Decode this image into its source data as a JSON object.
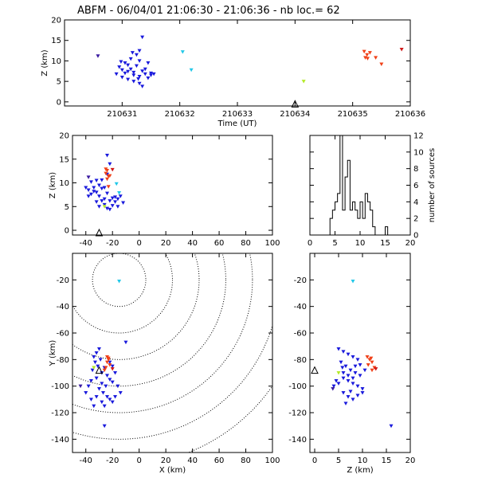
{
  "figure": {
    "title": "ABFM - 06/04/01 21:06:30 - 21:06:36 - nb loc.=      62"
  },
  "colors": {
    "blue": "#1a1adc",
    "navy": "#3a1aa0",
    "cyan": "#22c8e8",
    "lime": "#b4ea28",
    "red": "#f04018",
    "darkred": "#d01818",
    "axis": "#000000"
  },
  "chart_data": [
    {
      "id": "time_z",
      "type": "scatter",
      "xlabel": "Time (UT)",
      "ylabel": "Z (km)",
      "xlim": [
        210630,
        210636
      ],
      "ylim": [
        -1,
        20
      ],
      "xticks": [
        210631,
        210632,
        210633,
        210634,
        210635,
        210636
      ],
      "xticklabels": [
        "210631",
        "210632",
        "210633",
        "210634",
        "210635",
        "210636"
      ],
      "yticks": [
        0,
        5,
        10,
        15,
        20
      ],
      "marker": {
        "x": 210634,
        "y": -0.5
      },
      "series": [
        {
          "color": "blue",
          "points": [
            [
              210630.95,
              8.5
            ],
            [
              210631,
              7.8
            ],
            [
              210631.05,
              7
            ],
            [
              210631.1,
              9
            ],
            [
              210631.15,
              8
            ],
            [
              210631.2,
              6.5
            ],
            [
              210631.25,
              8.8
            ],
            [
              210631.3,
              10
            ],
            [
              210631.35,
              7.5
            ],
            [
              210631.4,
              6.8
            ],
            [
              210631.45,
              9.5
            ],
            [
              210631.5,
              7
            ],
            [
              210630.9,
              6.8
            ],
            [
              210631,
              6
            ],
            [
              210631.1,
              5.5
            ],
            [
              210631.2,
              5
            ],
            [
              210631.3,
              4.5
            ],
            [
              210631.35,
              3.8
            ],
            [
              210631.15,
              10.5
            ],
            [
              210631.25,
              11.5
            ],
            [
              210631.3,
              12.5
            ],
            [
              210631.35,
              15.8
            ],
            [
              210631.05,
              9.5
            ],
            [
              210631.4,
              8
            ],
            [
              210631.5,
              6.5
            ],
            [
              210631.2,
              7.2
            ],
            [
              210631.3,
              6.2
            ],
            [
              210631.1,
              7.4
            ],
            [
              210631.45,
              5.8
            ],
            [
              210631.55,
              6.8
            ],
            [
              210630.98,
              9.8
            ],
            [
              210631.28,
              5.6
            ],
            [
              210631.18,
              12
            ]
          ]
        },
        {
          "color": "navy",
          "points": [
            [
              210630.58,
              11.2
            ]
          ]
        },
        {
          "color": "cyan",
          "points": [
            [
              210632.05,
              12.2
            ],
            [
              210632.2,
              7.8
            ]
          ]
        },
        {
          "color": "lime",
          "points": [
            [
              210634.15,
              5
            ]
          ]
        },
        {
          "color": "red",
          "points": [
            [
              210635.2,
              12.3
            ],
            [
              210635.25,
              11.5
            ],
            [
              210635.22,
              10.8
            ],
            [
              210635.3,
              12
            ],
            [
              210635.4,
              10.8
            ],
            [
              210635.5,
              9.2
            ],
            [
              210635.26,
              10.6
            ]
          ]
        },
        {
          "color": "darkred",
          "points": [
            [
              210635.85,
              12.8
            ]
          ]
        }
      ]
    },
    {
      "id": "x_z",
      "type": "scatter",
      "xlabel": "",
      "ylabel": "Z (km)",
      "xlim": [
        -50,
        100
      ],
      "ylim": [
        -1,
        20
      ],
      "xticks": [
        -40,
        -20,
        0,
        20,
        40,
        60,
        80,
        100
      ],
      "xticklabels": [
        "-40",
        "-20",
        "0",
        "20",
        "40",
        "60",
        "80",
        "100"
      ],
      "yticks": [
        0,
        5,
        10,
        15,
        20
      ],
      "marker": {
        "x": -30,
        "y": -0.5
      },
      "series": [
        {
          "color": "blue",
          "points": [
            [
              -40,
              9
            ],
            [
              -38,
              8.5
            ],
            [
              -36,
              7.6
            ],
            [
              -34,
              9
            ],
            [
              -32,
              8
            ],
            [
              -30,
              7.2
            ],
            [
              -28,
              8.8
            ],
            [
              -26,
              6.6
            ],
            [
              -24,
              7.8
            ],
            [
              -22,
              6.2
            ],
            [
              -20,
              5.2
            ],
            [
              -18,
              7
            ],
            [
              -16,
              6.6
            ],
            [
              -14,
              7.2
            ],
            [
              -12,
              5.8
            ],
            [
              -32,
              6
            ],
            [
              -30,
              5
            ],
            [
              -26,
              5.4
            ],
            [
              -24,
              4.6
            ],
            [
              -22,
              4.4
            ],
            [
              -36,
              10.2
            ],
            [
              -28,
              10.6
            ],
            [
              -24,
              11.8
            ],
            [
              -22,
              14
            ],
            [
              -24,
              15.8
            ],
            [
              -30,
              9.5
            ],
            [
              -34,
              8.2
            ],
            [
              -26,
              9
            ],
            [
              -20,
              6.8
            ],
            [
              -38,
              7.2
            ],
            [
              -32,
              10.5
            ],
            [
              -28,
              6.2
            ],
            [
              -16,
              5
            ],
            [
              -18,
              6
            ]
          ]
        },
        {
          "color": "navy",
          "points": [
            [
              -38,
              11.2
            ]
          ]
        },
        {
          "color": "cyan",
          "points": [
            [
              -15,
              7.9
            ],
            [
              -17,
              9.8
            ]
          ]
        },
        {
          "color": "lime",
          "points": [
            [
              -26,
              5
            ]
          ]
        },
        {
          "color": "red",
          "points": [
            [
              -24,
              12.6
            ],
            [
              -25,
              12
            ],
            [
              -23,
              11.4
            ],
            [
              -24,
              10.8
            ],
            [
              -25,
              12.9
            ],
            [
              -22,
              11.5
            ],
            [
              -23,
              9.2
            ]
          ]
        },
        {
          "color": "darkred",
          "points": [
            [
              -20,
              12.8
            ]
          ]
        }
      ]
    },
    {
      "id": "histogram",
      "type": "bar",
      "xlabel": "",
      "ylabel": "number of sources",
      "xlim": [
        0,
        20
      ],
      "ylim": [
        0,
        12
      ],
      "xticks": [
        0,
        5,
        10,
        15,
        20
      ],
      "xticklabels": [
        "0",
        "5",
        "10",
        "15",
        "20"
      ],
      "yticks": [
        0,
        2,
        4,
        6,
        8,
        10,
        12
      ],
      "bin_width": 0.5,
      "bins_start": 4,
      "counts": [
        2,
        3,
        4,
        5,
        12,
        3,
        7,
        9,
        3,
        4,
        3,
        2,
        4,
        2,
        5,
        4,
        3,
        1,
        0,
        0,
        0,
        0,
        1,
        0
      ]
    },
    {
      "id": "x_y",
      "type": "scatter",
      "xlabel": "X (km)",
      "ylabel": "Y (km)",
      "xlim": [
        -50,
        100
      ],
      "ylim": [
        -150,
        0
      ],
      "xticks": [
        -40,
        -20,
        0,
        20,
        40,
        60,
        80,
        100
      ],
      "xticklabels": [
        "-40",
        "-20",
        "0",
        "20",
        "40",
        "60",
        "80",
        "100"
      ],
      "yticks": [
        -140,
        -120,
        -100,
        -80,
        -60,
        -40,
        -20
      ],
      "range_rings_center": [
        -15,
        -20
      ],
      "range_rings": [
        20,
        40,
        60,
        80,
        100,
        120,
        140
      ],
      "marker": {
        "x": -30,
        "y": -88
      },
      "series": [
        {
          "color": "blue",
          "points": [
            [
              -30,
              -72
            ],
            [
              -32,
              -75
            ],
            [
              -34,
              -78
            ],
            [
              -29,
              -80
            ],
            [
              -33,
              -82
            ],
            [
              -31,
              -85
            ],
            [
              -35,
              -88
            ],
            [
              -28,
              -90
            ],
            [
              -26,
              -86
            ],
            [
              -24,
              -92
            ],
            [
              -22,
              -95
            ],
            [
              -20,
              -97
            ],
            [
              -25,
              -100
            ],
            [
              -28,
              -98
            ],
            [
              -30,
              -102
            ],
            [
              -32,
              -94
            ],
            [
              -36,
              -96
            ],
            [
              -38,
              -100
            ],
            [
              -40,
              -105
            ],
            [
              -27,
              -105
            ],
            [
              -24,
              -108
            ],
            [
              -22,
              -110
            ],
            [
              -20,
              -112
            ],
            [
              -18,
              -108
            ],
            [
              -26,
              -115
            ],
            [
              -28,
              -112
            ],
            [
              -32,
              -108
            ],
            [
              -36,
              -110
            ],
            [
              -34,
              -115
            ],
            [
              -26,
              -130
            ],
            [
              -14,
              -105
            ],
            [
              -16,
              -100
            ],
            [
              -18,
              -90
            ],
            [
              -20,
              -85
            ],
            [
              -22,
              -82
            ],
            [
              -10,
              -67
            ]
          ]
        },
        {
          "color": "navy",
          "points": [
            [
              -44,
              -100
            ]
          ]
        },
        {
          "color": "cyan",
          "points": [
            [
              -15,
              -21
            ]
          ]
        },
        {
          "color": "lime",
          "points": [
            [
              -34,
              -86
            ]
          ]
        },
        {
          "color": "red",
          "points": [
            [
              -24,
              -78
            ],
            [
              -23,
              -80
            ],
            [
              -24,
              -82
            ],
            [
              -22,
              -84
            ],
            [
              -25,
              -86
            ],
            [
              -26,
              -88
            ],
            [
              -23,
              -79
            ]
          ]
        },
        {
          "color": "darkred",
          "points": [
            [
              -20,
              -87
            ]
          ]
        }
      ]
    },
    {
      "id": "z_y",
      "type": "scatter",
      "xlabel": "Z (km)",
      "ylabel": "",
      "xlim": [
        -1,
        20
      ],
      "ylim": [
        -150,
        0
      ],
      "xticks": [
        0,
        5,
        10,
        15,
        20
      ],
      "xticklabels": [
        "0",
        "5",
        "10",
        "15",
        "20"
      ],
      "yticks": [
        -140,
        -120,
        -100,
        -80,
        -60,
        -40,
        -20
      ],
      "marker": {
        "x": 0,
        "y": -88
      },
      "series": [
        {
          "color": "blue",
          "points": [
            [
              5,
              -72
            ],
            [
              6,
              -74
            ],
            [
              7,
              -76
            ],
            [
              8,
              -78
            ],
            [
              9,
              -80
            ],
            [
              5.5,
              -82
            ],
            [
              6.5,
              -85
            ],
            [
              7.5,
              -88
            ],
            [
              8.5,
              -90
            ],
            [
              9.5,
              -92
            ],
            [
              6,
              -94
            ],
            [
              7,
              -96
            ],
            [
              8,
              -98
            ],
            [
              9,
              -100
            ],
            [
              10,
              -102
            ],
            [
              5,
              -98
            ],
            [
              4,
              -100
            ],
            [
              6,
              -105
            ],
            [
              7,
              -108
            ],
            [
              8,
              -110
            ],
            [
              9,
              -107
            ],
            [
              10,
              -105
            ],
            [
              4.5,
              -96
            ],
            [
              6,
              -90
            ],
            [
              7,
              -92
            ],
            [
              8.5,
              -85
            ],
            [
              9.5,
              -84
            ],
            [
              10.5,
              -88
            ],
            [
              6.5,
              -113
            ],
            [
              16,
              -130
            ],
            [
              7.5,
              -104
            ],
            [
              8,
              -94
            ],
            [
              5.8,
              -86
            ]
          ]
        },
        {
          "color": "navy",
          "points": [
            [
              3.8,
              -102
            ]
          ]
        },
        {
          "color": "cyan",
          "points": [
            [
              8,
              -21
            ]
          ]
        },
        {
          "color": "lime",
          "points": [
            [
              5,
              -90
            ]
          ]
        },
        {
          "color": "red",
          "points": [
            [
              11,
              -78
            ],
            [
              11.5,
              -80
            ],
            [
              12,
              -82
            ],
            [
              11.2,
              -84
            ],
            [
              12.5,
              -86
            ],
            [
              12,
              -88
            ],
            [
              11.8,
              -79
            ]
          ]
        },
        {
          "color": "darkred",
          "points": [
            [
              12.8,
              -87
            ]
          ]
        }
      ]
    }
  ]
}
